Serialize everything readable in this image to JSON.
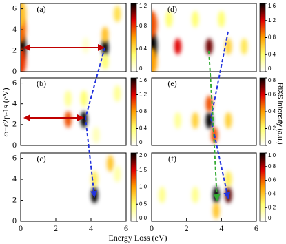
{
  "xlabel": "Energy Loss (eV)",
  "ylabel": "ω−ε2p-1s (eV)",
  "colorbar_label": "RIXS Intensity (a.u.)",
  "colormap": [
    "#ffffff",
    "#ffff70",
    "#ffa000",
    "#e00000",
    "#000000"
  ],
  "chart_data": [
    {
      "type": "heatmap",
      "label": "(a)",
      "xlim": [
        0,
        6
      ],
      "ylim": [
        0,
        6.5
      ],
      "yticks": [
        0,
        2,
        4,
        6
      ],
      "clim": [
        0,
        1.2
      ],
      "cticks": [
        0,
        0.4,
        0.8,
        1.2
      ],
      "x": [
        0,
        0,
        0,
        0,
        4.8,
        4.8,
        4.8,
        5.5,
        3.7
      ],
      "y": [
        2.3,
        1,
        4,
        5.5,
        2.3,
        3.5,
        1,
        5.5,
        2.5
      ],
      "values": [
        1.2,
        0.8,
        0.7,
        0.5,
        1.2,
        0.5,
        0.3,
        0.4,
        0.1
      ]
    },
    {
      "type": "heatmap",
      "label": "(b)",
      "xlim": [
        0,
        6
      ],
      "ylim": [
        0,
        6.5
      ],
      "yticks": [
        0,
        2,
        4,
        6
      ],
      "clim": [
        0,
        1.6
      ],
      "cticks": [
        0,
        0.4,
        0.8,
        1.2,
        1.6
      ],
      "x": [
        2.7,
        3.6,
        3.6,
        2.7,
        4.3,
        5.5
      ],
      "y": [
        2.5,
        2.5,
        4.5,
        4.5,
        1,
        5
      ],
      "values": [
        1.0,
        1.6,
        0.4,
        0.3,
        0.2,
        0.3
      ]
    },
    {
      "type": "heatmap",
      "label": "(c)",
      "xlim": [
        0,
        6
      ],
      "ylim": [
        0,
        6.5
      ],
      "xticks": [
        0,
        2,
        4,
        6
      ],
      "yticks": [
        0,
        2,
        4,
        6
      ],
      "clim": [
        0,
        2
      ],
      "cticks": [
        {
          "value": 0,
          "label": "0.0"
        },
        0.5,
        {
          "value": 1,
          "label": "1.0"
        },
        1.5,
        {
          "value": 2,
          "label": "2.0"
        }
      ],
      "x": [
        4.2,
        4.2,
        5.1,
        5.5
      ],
      "y": [
        2.5,
        4,
        5.5,
        4.5
      ],
      "values": [
        2.0,
        0.6,
        0.8,
        0.3
      ]
    },
    {
      "type": "heatmap",
      "label": "(d)",
      "xlim": [
        0,
        6
      ],
      "ylim": [
        0,
        6.5
      ],
      "clim": [
        0,
        1.6
      ],
      "cticks": [
        0,
        0.4,
        0.8,
        1.2,
        1.6
      ],
      "x": [
        0,
        0,
        0,
        1.5,
        3.3,
        4.4,
        5.3,
        1,
        2.5,
        4
      ],
      "y": [
        2.5,
        4.5,
        1,
        2.4,
        2.4,
        2.4,
        2.4,
        5,
        5,
        5
      ],
      "values": [
        1.6,
        1.0,
        0.8,
        1.2,
        1.4,
        0.6,
        0.5,
        0.4,
        0.4,
        0.4
      ]
    },
    {
      "type": "heatmap",
      "label": "(e)",
      "xlim": [
        0,
        6
      ],
      "ylim": [
        0,
        6.5
      ],
      "clim": [
        0,
        0.8
      ],
      "cticks": [
        0,
        0.2,
        0.4,
        0.6,
        0.8
      ],
      "x": [
        3.3,
        3.3,
        3.6,
        2.5,
        4.4,
        1.5
      ],
      "y": [
        2.4,
        4,
        1,
        2.4,
        2.4,
        2.4
      ],
      "values": [
        0.8,
        0.5,
        0.5,
        0.3,
        0.3,
        0.15
      ]
    },
    {
      "type": "heatmap",
      "label": "(f)",
      "xlim": [
        0,
        6
      ],
      "ylim": [
        0,
        6.5
      ],
      "xticks": [
        0,
        2,
        4,
        6
      ],
      "clim": [
        0,
        1
      ],
      "cticks": [
        0,
        0.2,
        0.4,
        0.6,
        0.8,
        {
          "value": 1,
          "label": "1.0"
        }
      ],
      "x": [
        3.7,
        4.4,
        3.7,
        4.4,
        2.5,
        0.6
      ],
      "y": [
        2.5,
        2.5,
        1,
        4,
        2.5,
        2.5
      ],
      "values": [
        1.0,
        0.9,
        0.4,
        0.3,
        0.2,
        0.2
      ]
    }
  ]
}
